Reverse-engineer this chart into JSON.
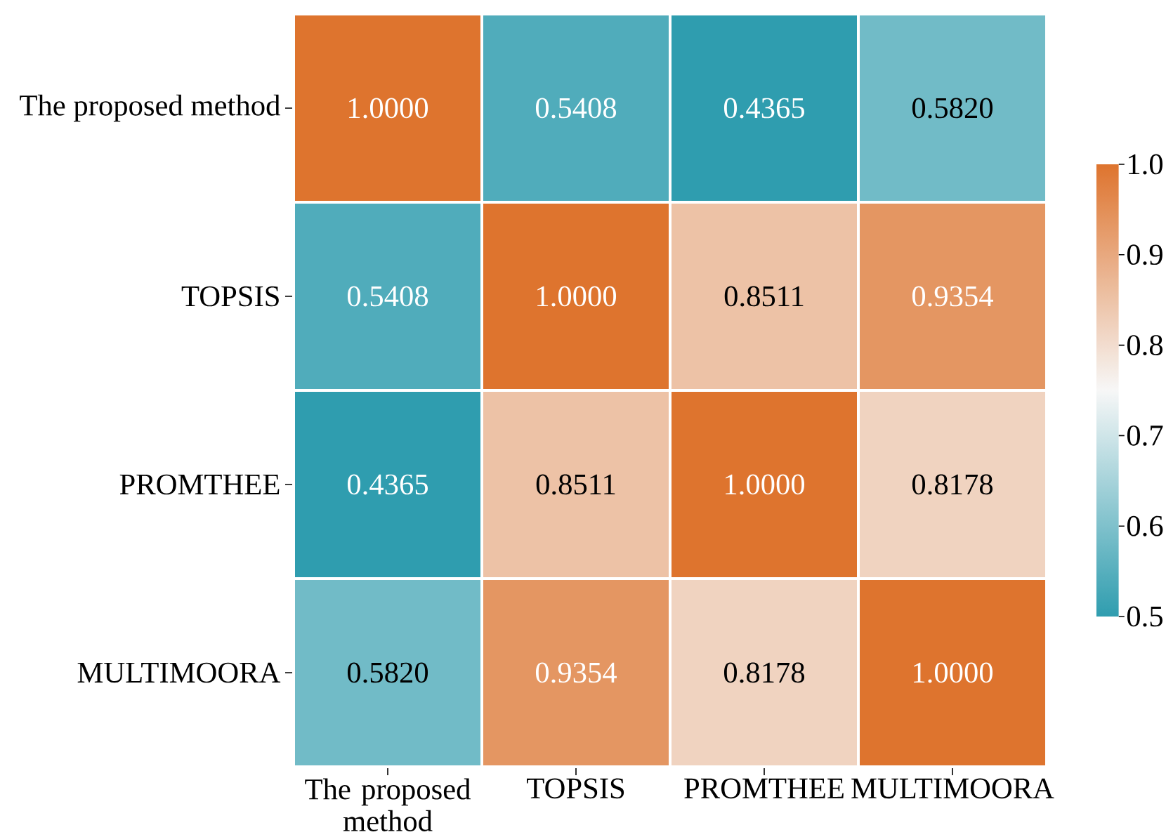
{
  "chart_data": {
    "type": "heatmap",
    "categories": [
      "The proposed method",
      "TOPSIS",
      "PROMTHEE",
      "MULTIMOORA"
    ],
    "y_categories": [
      "The proposed method",
      "TOPSIS",
      "PROMTHEE",
      "MULTIMOORA"
    ],
    "cells": [
      [
        1.0,
        0.5408,
        0.4365,
        0.582
      ],
      [
        0.5408,
        1.0,
        0.8511,
        0.9354
      ],
      [
        0.4365,
        0.8511,
        1.0,
        0.8178
      ],
      [
        0.582,
        0.9354,
        0.8178,
        1.0
      ]
    ],
    "cell_labels": [
      [
        "1.0000",
        "0.5408",
        "0.4365",
        "0.5820"
      ],
      [
        "0.5408",
        "1.0000",
        "0.8511",
        "0.9354"
      ],
      [
        "0.4365",
        "0.8511",
        "1.0000",
        "0.8178"
      ],
      [
        "0.5820",
        "0.9354",
        "0.8178",
        "1.0000"
      ]
    ],
    "clim": [
      0.5,
      1.0
    ],
    "cticks": [
      0.5,
      0.6,
      0.7,
      0.8,
      0.9,
      {
        "value": 1.0,
        "label": "1.0"
      }
    ]
  }
}
